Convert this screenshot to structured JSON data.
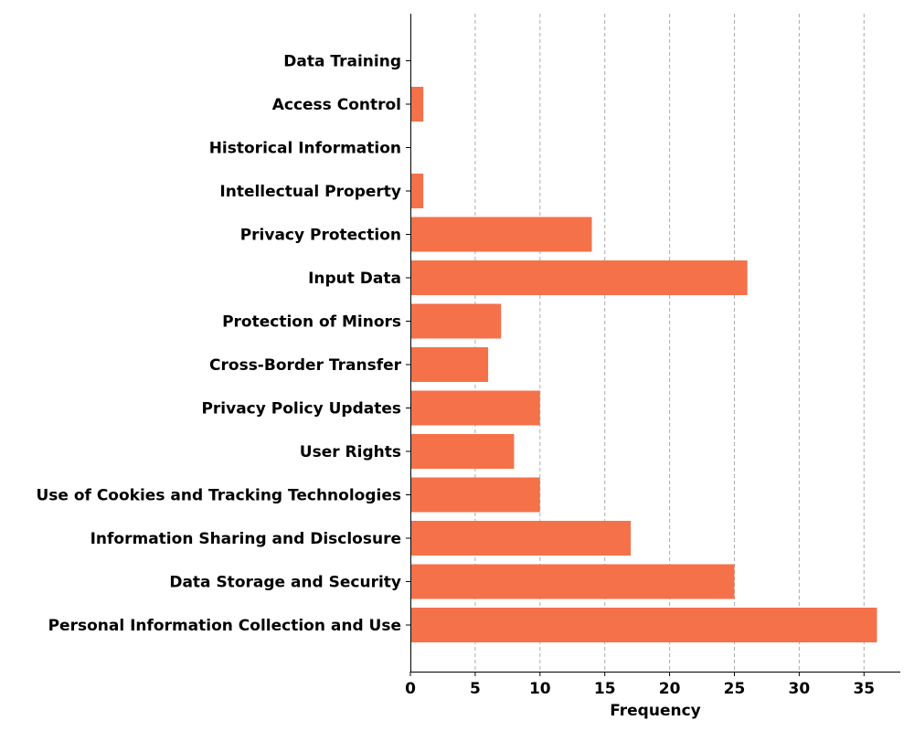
{
  "chart_data": {
    "type": "bar",
    "orientation": "horizontal",
    "title": "",
    "xlabel": "Frequency",
    "ylabel": "",
    "xlim": [
      0,
      37.8
    ],
    "x_ticks": [
      0,
      5,
      10,
      15,
      20,
      25,
      30,
      35
    ],
    "grid": "vertical dashed",
    "bar_color": "#f4714a",
    "grid_color": "#aaaaaa",
    "categories": [
      "Personal Information Collection and Use",
      "Data Storage and Security",
      "Information Sharing and Disclosure",
      "Use of Cookies and Tracking Technologies",
      "User Rights",
      "Privacy Policy Updates",
      "Cross-Border Transfer",
      "Protection of Minors",
      "Input Data",
      "Privacy Protection",
      "Intellectual Property",
      "Historical Information",
      "Access Control",
      "Data Training"
    ],
    "values": [
      36,
      25,
      17,
      10,
      8,
      10,
      6,
      7,
      26,
      14,
      1,
      0,
      1,
      0
    ]
  }
}
